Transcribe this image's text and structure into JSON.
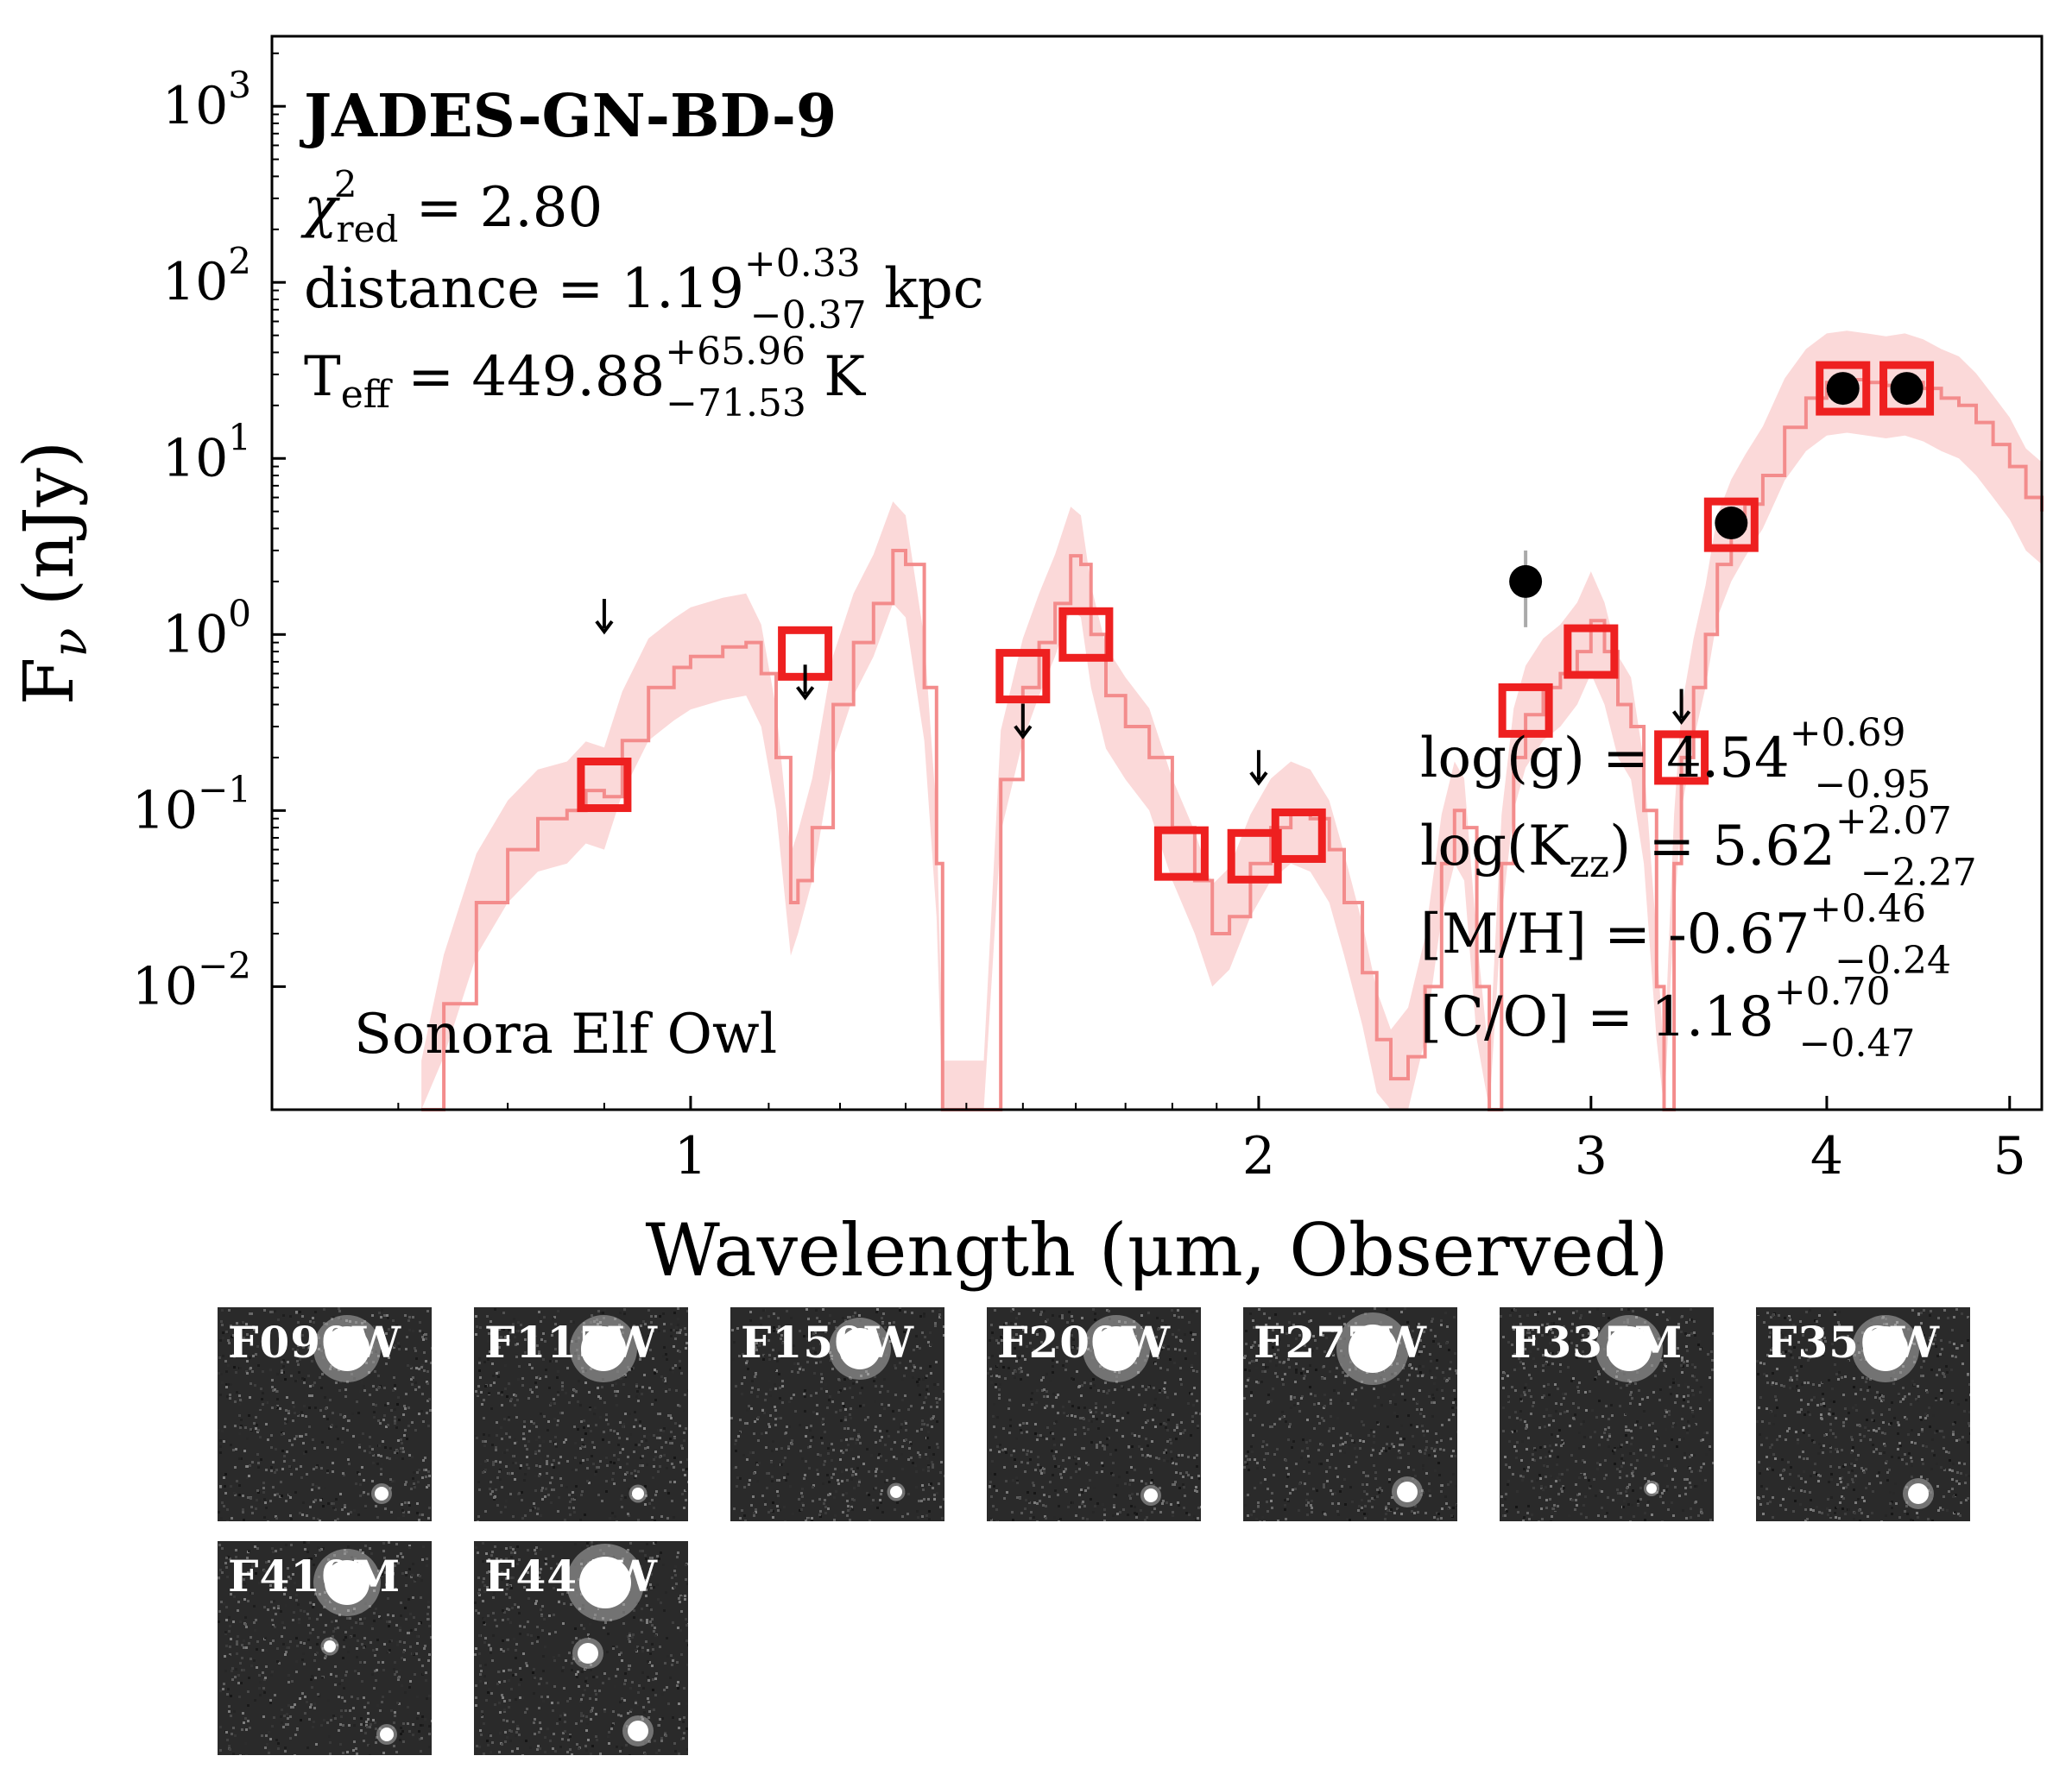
{
  "chart_data": {
    "type": "scatter",
    "title": "JADES-GN-BD-9",
    "xlabel": "Wavelength (μm, Observed)",
    "ylabel": "F_ν (nJy)",
    "xscale": "log",
    "yscale": "log",
    "xlim": [
      0.6,
      5.2
    ],
    "ylim": [
      0.002,
      2500
    ],
    "xticks": [
      {
        "value": 1,
        "label": "1"
      },
      {
        "value": 2,
        "label": "2"
      },
      {
        "value": 3,
        "label": "3"
      },
      {
        "value": 4,
        "label": "4"
      },
      {
        "value": 5,
        "label": "5"
      }
    ],
    "yticks": [
      {
        "value": 0.01,
        "base": "10",
        "exp": "−2"
      },
      {
        "value": 0.1,
        "base": "10",
        "exp": "−1"
      },
      {
        "value": 1,
        "base": "10",
        "exp": "0"
      },
      {
        "value": 10,
        "base": "10",
        "exp": "1"
      },
      {
        "value": 100,
        "base": "10",
        "exp": "2"
      },
      {
        "value": 1000,
        "base": "10",
        "exp": "3"
      }
    ],
    "annotations": {
      "chi2": {
        "symbol": "χ",
        "sup": "2",
        "sub": "red",
        "value": " = 2.80"
      },
      "distance": {
        "label": "distance = 1.19",
        "up": "+0.33",
        "down": "−0.37",
        "unit": " kpc"
      },
      "teff": {
        "label": "T",
        "sub": "eff",
        "value": " = 449.88",
        "up": "+65.96",
        "down": "−71.53",
        "unit": " K"
      },
      "model": "Sonora Elf Owl",
      "logg": {
        "label": "log(g) = 4.54",
        "up": "+0.69",
        "down": "−0.95"
      },
      "logkzz": {
        "label": "log(K",
        "sub": "zz",
        "value": ") = 5.62",
        "up": "+2.07",
        "down": "−2.27"
      },
      "mh": {
        "label": "[M/H] = -0.67",
        "up": "+0.46",
        "down": "−0.24"
      },
      "co": {
        "label": "[C/O] = 1.18",
        "up": "+0.70",
        "down": "−0.47"
      }
    },
    "observed_photometry": [
      {
        "x": 2.77,
        "y": 2.0,
        "yerr_low": 0.9,
        "yerr_high": 1.0
      },
      {
        "x": 3.56,
        "y": 4.3,
        "yerr_low": 0.4,
        "yerr_high": 0.4
      },
      {
        "x": 4.08,
        "y": 25.0,
        "yerr_low": 1.5,
        "yerr_high": 1.5
      },
      {
        "x": 4.41,
        "y": 25.0,
        "yerr_low": 1.5,
        "yerr_high": 1.5
      }
    ],
    "upper_limits": [
      {
        "x": 0.9,
        "y": 1.3
      },
      {
        "x": 1.15,
        "y": 0.55
      },
      {
        "x": 1.5,
        "y": 0.33
      },
      {
        "x": 2.0,
        "y": 0.18
      },
      {
        "x": 3.35,
        "y": 0.4
      }
    ],
    "model_photometry": [
      {
        "x": 0.9,
        "y": 0.14
      },
      {
        "x": 1.15,
        "y": 0.78
      },
      {
        "x": 1.5,
        "y": 0.58
      },
      {
        "x": 1.62,
        "y": 1.0
      },
      {
        "x": 1.82,
        "y": 0.057
      },
      {
        "x": 1.99,
        "y": 0.055
      },
      {
        "x": 2.1,
        "y": 0.072
      },
      {
        "x": 2.77,
        "y": 0.37
      },
      {
        "x": 3.0,
        "y": 0.8
      },
      {
        "x": 3.35,
        "y": 0.2
      },
      {
        "x": 3.56,
        "y": 4.2
      },
      {
        "x": 4.08,
        "y": 25.0
      },
      {
        "x": 4.41,
        "y": 25.0
      }
    ],
    "model_spectrum": [
      [
        0.72,
        0.002
      ],
      [
        0.74,
        0.008
      ],
      [
        0.77,
        0.03
      ],
      [
        0.8,
        0.06
      ],
      [
        0.83,
        0.09
      ],
      [
        0.86,
        0.1
      ],
      [
        0.88,
        0.13
      ],
      [
        0.9,
        0.12
      ],
      [
        0.92,
        0.25
      ],
      [
        0.95,
        0.5
      ],
      [
        0.98,
        0.65
      ],
      [
        1.0,
        0.75
      ],
      [
        1.04,
        0.85
      ],
      [
        1.07,
        0.9
      ],
      [
        1.09,
        0.6
      ],
      [
        1.11,
        0.2
      ],
      [
        1.13,
        0.03
      ],
      [
        1.14,
        0.04
      ],
      [
        1.16,
        0.08
      ],
      [
        1.19,
        0.4
      ],
      [
        1.22,
        0.9
      ],
      [
        1.25,
        1.5
      ],
      [
        1.28,
        3.0
      ],
      [
        1.3,
        2.5
      ],
      [
        1.33,
        0.5
      ],
      [
        1.35,
        0.05
      ],
      [
        1.36,
        0.002
      ],
      [
        1.4,
        0.002
      ],
      [
        1.43,
        0.002
      ],
      [
        1.46,
        0.15
      ],
      [
        1.5,
        0.5
      ],
      [
        1.53,
        0.9
      ],
      [
        1.56,
        1.5
      ],
      [
        1.59,
        2.8
      ],
      [
        1.61,
        2.5
      ],
      [
        1.63,
        1.0
      ],
      [
        1.66,
        0.45
      ],
      [
        1.7,
        0.3
      ],
      [
        1.75,
        0.2
      ],
      [
        1.8,
        0.08
      ],
      [
        1.85,
        0.04
      ],
      [
        1.89,
        0.02
      ],
      [
        1.93,
        0.025
      ],
      [
        1.98,
        0.05
      ],
      [
        2.03,
        0.08
      ],
      [
        2.08,
        0.1
      ],
      [
        2.13,
        0.09
      ],
      [
        2.18,
        0.06
      ],
      [
        2.22,
        0.03
      ],
      [
        2.27,
        0.012
      ],
      [
        2.31,
        0.005
      ],
      [
        2.35,
        0.003
      ],
      [
        2.4,
        0.004
      ],
      [
        2.45,
        0.01
      ],
      [
        2.5,
        0.05
      ],
      [
        2.54,
        0.1
      ],
      [
        2.57,
        0.08
      ],
      [
        2.61,
        0.01
      ],
      [
        2.65,
        0.002
      ],
      [
        2.69,
        0.05
      ],
      [
        2.73,
        0.2
      ],
      [
        2.77,
        0.35
      ],
      [
        2.83,
        0.5
      ],
      [
        2.89,
        0.6
      ],
      [
        2.95,
        0.8
      ],
      [
        3.0,
        1.2
      ],
      [
        3.05,
        0.8
      ],
      [
        3.1,
        0.4
      ],
      [
        3.15,
        0.3
      ],
      [
        3.2,
        0.1
      ],
      [
        3.25,
        0.01
      ],
      [
        3.28,
        0.002
      ],
      [
        3.32,
        0.05
      ],
      [
        3.35,
        0.2
      ],
      [
        3.4,
        0.5
      ],
      [
        3.45,
        1.0
      ],
      [
        3.5,
        2.5
      ],
      [
        3.56,
        4.0
      ],
      [
        3.62,
        5.5
      ],
      [
        3.7,
        8.0
      ],
      [
        3.8,
        15.0
      ],
      [
        3.9,
        22.0
      ],
      [
        4.0,
        27.0
      ],
      [
        4.1,
        28.0
      ],
      [
        4.2,
        27.0
      ],
      [
        4.3,
        26.0
      ],
      [
        4.4,
        27.0
      ],
      [
        4.5,
        25.0
      ],
      [
        4.6,
        22.0
      ],
      [
        4.7,
        20.0
      ],
      [
        4.8,
        16.0
      ],
      [
        4.9,
        12.0
      ],
      [
        5.0,
        9.0
      ],
      [
        5.1,
        6.0
      ],
      [
        5.2,
        5.0
      ]
    ],
    "colors": {
      "model": "#f38c8c",
      "band": "#fbd7d7",
      "model_points": "#ee2020",
      "observed": "#000000"
    }
  },
  "cutouts": [
    {
      "filter": "F090W"
    },
    {
      "filter": "F115W"
    },
    {
      "filter": "F150W"
    },
    {
      "filter": "F200W"
    },
    {
      "filter": "F277W"
    },
    {
      "filter": "F335M"
    },
    {
      "filter": "F356W"
    },
    {
      "filter": "F410M"
    },
    {
      "filter": "F444W"
    }
  ]
}
